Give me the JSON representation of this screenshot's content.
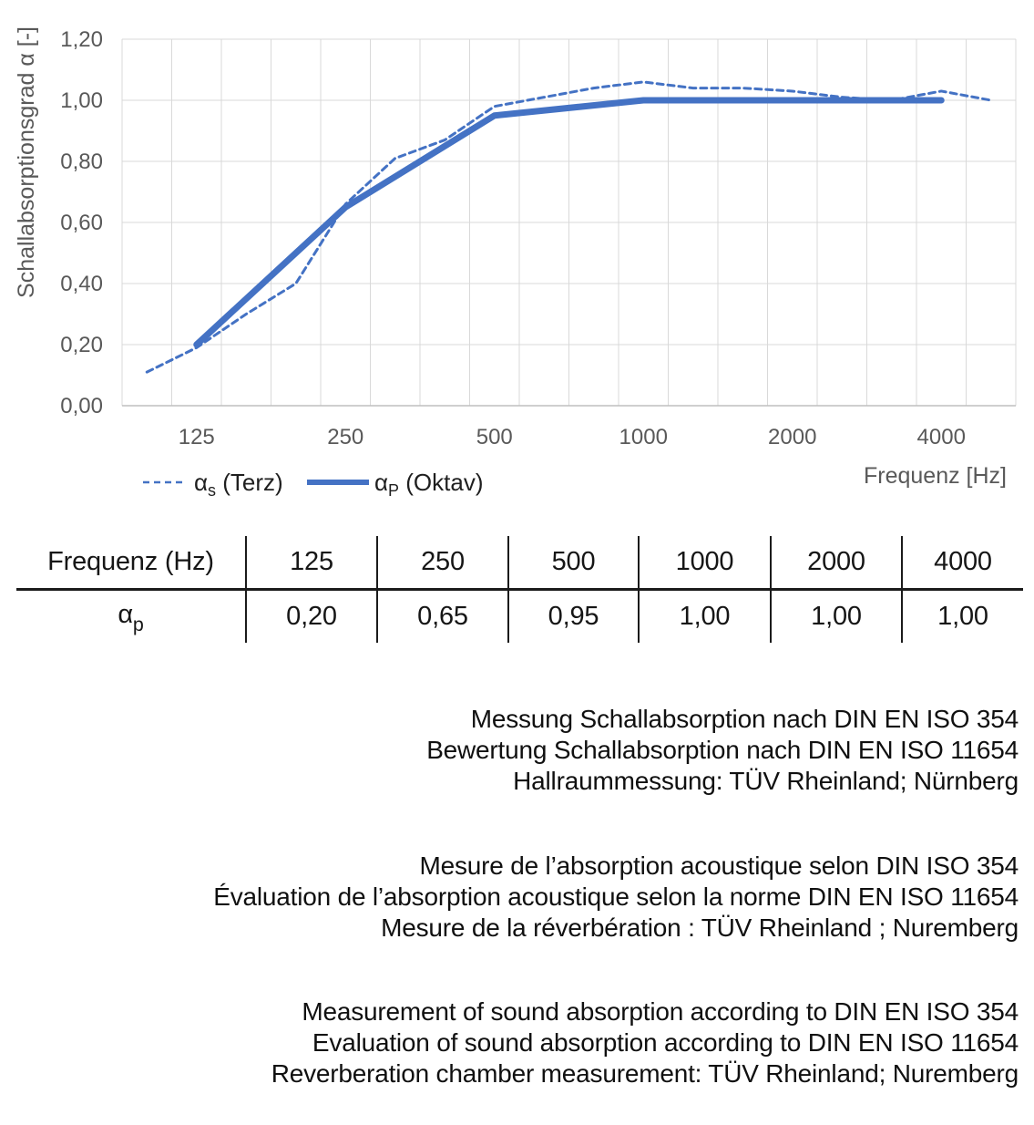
{
  "chart_data": {
    "type": "line",
    "title": "",
    "ylabel": "Schallabsorptionsgrad α [-]",
    "xlabel": "Frequenz [Hz]",
    "ylim": [
      0,
      1.2
    ],
    "y_tick_labels": [
      "0,00",
      "0,20",
      "0,40",
      "0,60",
      "0,80",
      "1,00",
      "1,20"
    ],
    "categories": [
      100,
      125,
      160,
      200,
      250,
      315,
      400,
      500,
      630,
      800,
      1000,
      1250,
      1600,
      2000,
      2500,
      3150,
      4000,
      5000
    ],
    "x_tick_categories": [
      125,
      250,
      500,
      1000,
      2000,
      4000
    ],
    "x_tick_labels": [
      "125",
      "250",
      "500",
      "1000",
      "2000",
      "4000"
    ],
    "grid": true,
    "legend_position": "bottom-left",
    "series": [
      {
        "name": "αs (Terz)",
        "name_parts": {
          "alpha": "α",
          "sub": "s",
          "rest": " (Terz)"
        },
        "style": "dashed",
        "color": "#4472C4",
        "x": [
          100,
          125,
          160,
          200,
          250,
          315,
          400,
          500,
          630,
          800,
          1000,
          1250,
          1600,
          2000,
          2500,
          3150,
          4000,
          5000
        ],
        "values": [
          0.11,
          0.19,
          0.3,
          0.4,
          0.66,
          0.81,
          0.87,
          0.98,
          1.01,
          1.04,
          1.06,
          1.04,
          1.04,
          1.03,
          1.01,
          1.0,
          1.03,
          1.0
        ]
      },
      {
        "name": "αP (Oktav)",
        "name_parts": {
          "alpha": "α",
          "sub": "P",
          "rest": " (Oktav)"
        },
        "style": "solid",
        "color": "#4472C4",
        "x": [
          125,
          250,
          500,
          1000,
          2000,
          4000
        ],
        "values": [
          0.2,
          0.65,
          0.95,
          1.0,
          1.0,
          1.0
        ]
      }
    ],
    "colors": {
      "grid": "#D9D9D9",
      "axis": "#BFBFBF",
      "tick_text": "#595959",
      "axis_title_text": "#595959",
      "legend_text": "#1f1f1f"
    }
  },
  "table": {
    "header_label": "Frequenz (Hz)",
    "row_label": {
      "alpha": "α",
      "sub": "p"
    },
    "frequencies": [
      "125",
      "250",
      "500",
      "1000",
      "2000",
      "4000"
    ],
    "values": [
      "0,20",
      "0,65",
      "0,95",
      "1,00",
      "1,00",
      "1,00"
    ]
  },
  "notes": {
    "de": [
      "Messung Schallabsorption nach DIN EN ISO 354",
      "Bewertung Schallabsorption nach DIN EN ISO 11654",
      "Hallraummessung: TÜV Rheinland; Nürnberg"
    ],
    "fr": [
      "Mesure de l’absorption acoustique selon DIN ISO 354",
      "Évaluation de l’absorption acoustique selon la norme DIN EN ISO 11654",
      "Mesure de la réverbération : TÜV Rheinland ; Nuremberg"
    ],
    "en": [
      "Measurement of sound absorption according to DIN EN ISO 354",
      "Evaluation of sound absorption according to DIN EN ISO 11654",
      "Reverberation chamber measurement: TÜV Rheinland; Nuremberg"
    ]
  }
}
